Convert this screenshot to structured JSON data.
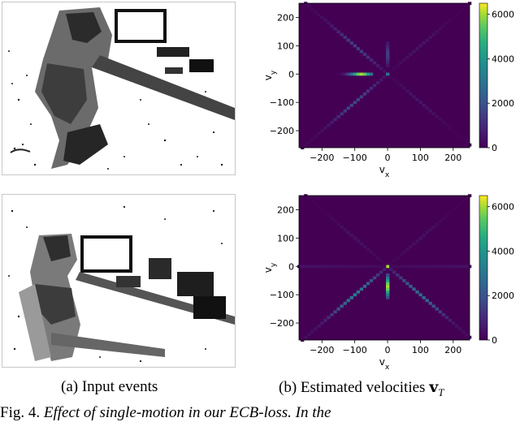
{
  "captions": {
    "a_label": "(a)",
    "a_text": "Input events",
    "b_label": "(b)",
    "b_text": "Estimated velocities",
    "b_symbol_main": "v",
    "b_symbol_sub": "T"
  },
  "figure_caption": {
    "prefix": "Fig. 4.",
    "text": "Effect of single-motion in our ECB-loss. In the"
  },
  "colors": {
    "viridis_dark": "#440154",
    "viridis_mid": "#21918c",
    "viridis_bright": "#fde725"
  },
  "chart_data": [
    {
      "type": "heatmap",
      "title": "",
      "xlabel": "v_x",
      "ylabel": "v_y",
      "xlim": [
        -270,
        250
      ],
      "ylim": [
        -260,
        250
      ],
      "xticks": [
        -200,
        -100,
        0,
        100,
        200
      ],
      "yticks": [
        200,
        100,
        0,
        -100,
        -200
      ],
      "colorbar": {
        "min": 0,
        "max": 6500,
        "ticks": [
          0,
          2000,
          4000,
          6000
        ]
      },
      "features": [
        {
          "kind": "horizontal-streak",
          "vy": 0,
          "vx_range": [
            -150,
            -50
          ],
          "peak_vx": -80,
          "peak_value": 6000
        },
        {
          "kind": "center-point",
          "vx": 0,
          "vy": 0,
          "value": 3000
        },
        {
          "kind": "vertical-streak",
          "vx": 0,
          "vy_range": [
            30,
            110
          ],
          "peak_value": 1500
        },
        {
          "kind": "diagonal",
          "direction": "upper-left",
          "peak_value": 1500
        },
        {
          "kind": "diagonal",
          "direction": "lower-left",
          "peak_value": 1700
        },
        {
          "kind": "diagonal",
          "direction": "upper-right",
          "peak_value": 500
        },
        {
          "kind": "diagonal",
          "direction": "lower-right",
          "peak_value": 500
        }
      ]
    },
    {
      "type": "heatmap",
      "title": "",
      "xlabel": "v_x",
      "ylabel": "v_y",
      "xlim": [
        -270,
        250
      ],
      "ylim": [
        -260,
        250
      ],
      "xticks": [
        -200,
        -100,
        0,
        100,
        200
      ],
      "yticks": [
        200,
        100,
        0,
        -100,
        -200
      ],
      "colorbar": {
        "min": 0,
        "max": 6500,
        "ticks": [
          0,
          2000,
          4000,
          6000
        ]
      },
      "features": [
        {
          "kind": "center-point",
          "vx": 0,
          "vy": 0,
          "value": 6000
        },
        {
          "kind": "vertical-streak",
          "vx": 0,
          "vy_range": [
            -110,
            -30
          ],
          "peak_value": 6000
        },
        {
          "kind": "diagonal",
          "direction": "lower-left",
          "peak_value": 3200
        },
        {
          "kind": "diagonal",
          "direction": "lower-right",
          "peak_value": 2800
        },
        {
          "kind": "diagonal",
          "direction": "upper-left",
          "peak_value": 400
        },
        {
          "kind": "diagonal",
          "direction": "upper-right",
          "peak_value": 400
        },
        {
          "kind": "horizontal-streak",
          "vy": 0,
          "vx_range": [
            -270,
            250
          ],
          "peak_value": 400
        }
      ]
    }
  ]
}
